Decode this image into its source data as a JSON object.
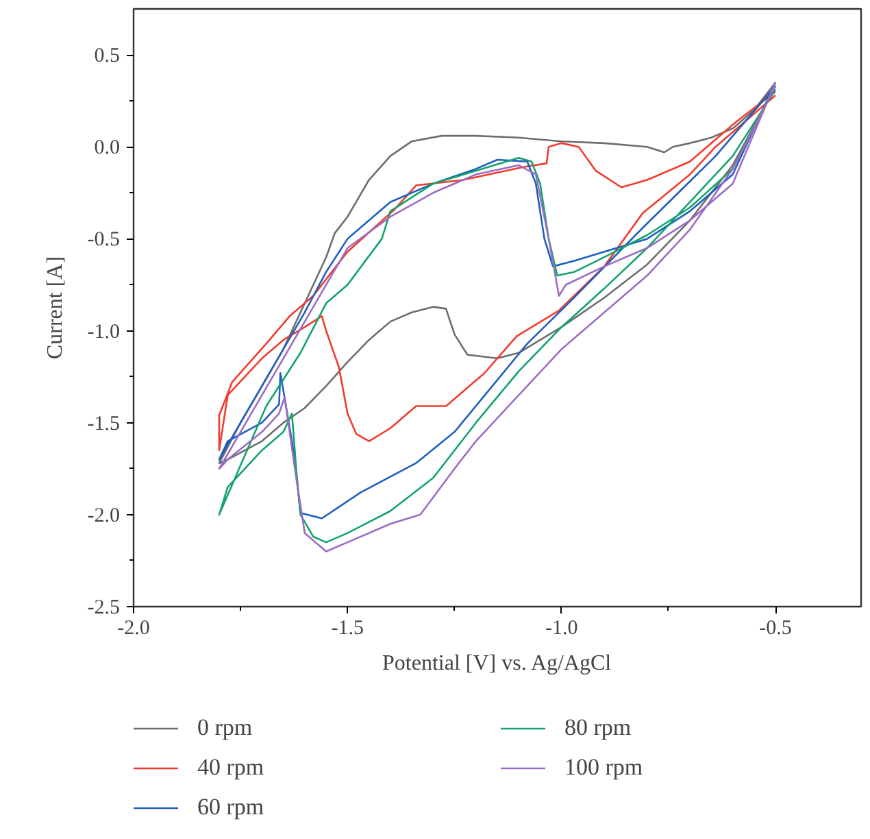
{
  "chart_data": {
    "type": "line",
    "xlabel": "Potential [V] vs. Ag/AgCl",
    "ylabel": "Current [A]",
    "xlim": [
      -2.0,
      -0.3
    ],
    "ylim": [
      -2.5,
      0.75
    ],
    "xticks": [
      {
        "value": -2.0,
        "label": "-2.0"
      },
      {
        "value": -1.75,
        "label": null
      },
      -1.5,
      {
        "value": -1.25,
        "label": null
      },
      {
        "value": -1.0,
        "label": "-1.0"
      },
      {
        "value": -0.75,
        "label": null
      },
      -0.5
    ],
    "yticks": [
      -2.5,
      {
        "value": -2.25,
        "label": null
      },
      {
        "value": -2.0,
        "label": "-2.0"
      },
      {
        "value": -1.75,
        "label": null
      },
      -1.5,
      {
        "value": -1.25,
        "label": null
      },
      {
        "value": -1.0,
        "label": "-1.0"
      },
      {
        "value": -0.75,
        "label": null
      },
      -0.5,
      {
        "value": -0.25,
        "label": null
      },
      {
        "value": 0.0,
        "label": "0.0"
      },
      {
        "value": 0.25,
        "label": null
      },
      0.5
    ],
    "grid": false,
    "legend": "bottom",
    "line_style": "solid",
    "marker": "none",
    "series": [
      {
        "name": "0 rpm",
        "color": "#6d6d6d",
        "x": [
          -0.5,
          -0.55,
          -0.6,
          -0.65,
          -0.7,
          -0.74,
          -0.76,
          -0.8,
          -0.9,
          -1.0,
          -1.1,
          -1.2,
          -1.28,
          -1.35,
          -1.4,
          -1.45,
          -1.5,
          -1.53,
          -1.55,
          -1.6,
          -1.65,
          -1.7,
          -1.75,
          -1.8,
          -1.78,
          -1.7,
          -1.65,
          -1.6,
          -1.55,
          -1.5,
          -1.45,
          -1.4,
          -1.35,
          -1.3,
          -1.27,
          -1.25,
          -1.22,
          -1.15,
          -1.1,
          -1.0,
          -0.9,
          -0.8,
          -0.7,
          -0.6,
          -0.5
        ],
        "values": [
          0.35,
          0.2,
          0.1,
          0.05,
          0.02,
          0.0,
          -0.03,
          0.0,
          0.02,
          0.03,
          0.05,
          0.06,
          0.06,
          0.03,
          -0.05,
          -0.18,
          -0.38,
          -0.47,
          -0.6,
          -0.85,
          -1.1,
          -1.3,
          -1.5,
          -1.72,
          -1.7,
          -1.6,
          -1.5,
          -1.42,
          -1.3,
          -1.17,
          -1.05,
          -0.95,
          -0.9,
          -0.87,
          -0.88,
          -1.02,
          -1.13,
          -1.15,
          -1.12,
          -0.98,
          -0.82,
          -0.64,
          -0.4,
          -0.1,
          0.33
        ]
      },
      {
        "name": "40 rpm",
        "color": "#f03c2e",
        "x": [
          -0.5,
          -0.59,
          -0.7,
          -0.8,
          -0.86,
          -0.92,
          -0.96,
          -1.0,
          -1.03,
          -1.035,
          -1.09,
          -1.23,
          -1.34,
          -1.39,
          -1.5,
          -1.58,
          -1.635,
          -1.69,
          -1.77,
          -1.8,
          -1.8,
          -1.78,
          -1.7,
          -1.65,
          -1.6,
          -1.56,
          -1.55,
          -1.52,
          -1.5,
          -1.48,
          -1.45,
          -1.4,
          -1.34,
          -1.27,
          -1.18,
          -1.105,
          -1.006,
          -0.9,
          -0.81,
          -0.7,
          -0.64,
          -0.5
        ],
        "values": [
          0.3,
          0.14,
          -0.08,
          -0.18,
          -0.22,
          -0.13,
          0.0,
          0.02,
          0.0,
          -0.09,
          -0.11,
          -0.18,
          -0.21,
          -0.34,
          -0.57,
          -0.81,
          -0.92,
          -1.07,
          -1.28,
          -1.46,
          -1.65,
          -1.35,
          -1.15,
          -1.05,
          -0.98,
          -0.92,
          -1.0,
          -1.2,
          -1.45,
          -1.56,
          -1.6,
          -1.53,
          -1.41,
          -1.41,
          -1.23,
          -1.03,
          -0.89,
          -0.65,
          -0.36,
          -0.15,
          0.0,
          0.28
        ]
      },
      {
        "name": "60 rpm",
        "color": "#1f5fbf",
        "x": [
          -0.5,
          -0.6,
          -0.7,
          -0.8,
          -0.9,
          -0.97,
          -1.02,
          -1.04,
          -1.06,
          -1.08,
          -1.15,
          -1.2,
          -1.3,
          -1.4,
          -1.5,
          -1.55,
          -1.6,
          -1.65,
          -1.7,
          -1.75,
          -1.8,
          -1.78,
          -1.7,
          -1.66,
          -1.657,
          -1.625,
          -1.61,
          -1.56,
          -1.47,
          -1.34,
          -1.25,
          -1.08,
          -0.975,
          -0.81,
          -0.64,
          -0.5
        ],
        "values": [
          0.35,
          -0.15,
          -0.35,
          -0.5,
          -0.57,
          -0.62,
          -0.65,
          -0.5,
          -0.2,
          -0.08,
          -0.07,
          -0.12,
          -0.2,
          -0.3,
          -0.5,
          -0.68,
          -0.9,
          -1.1,
          -1.3,
          -1.5,
          -1.7,
          -1.6,
          -1.5,
          -1.4,
          -1.23,
          -1.67,
          -1.99,
          -2.02,
          -1.88,
          -1.72,
          -1.55,
          -1.07,
          -0.83,
          -0.44,
          -0.05,
          0.33
        ]
      },
      {
        "name": "80 rpm",
        "color": "#14a36a",
        "x": [
          -0.5,
          -0.6,
          -0.7,
          -0.8,
          -0.9,
          -0.97,
          -1.01,
          -1.03,
          -1.05,
          -1.07,
          -1.1,
          -1.3,
          -1.4,
          -1.42,
          -1.5,
          -1.55,
          -1.61,
          -1.69,
          -1.8,
          -1.78,
          -1.7,
          -1.65,
          -1.63,
          -1.62,
          -1.61,
          -1.58,
          -1.55,
          -1.5,
          -1.4,
          -1.3,
          -1.25,
          -1.2,
          -1.1,
          -1.0,
          -0.9,
          -0.8,
          -0.7,
          -0.6,
          -0.5
        ],
        "values": [
          0.33,
          -0.12,
          -0.33,
          -0.48,
          -0.6,
          -0.68,
          -0.7,
          -0.5,
          -0.2,
          -0.08,
          -0.06,
          -0.2,
          -0.35,
          -0.5,
          -0.75,
          -0.85,
          -1.12,
          -1.41,
          -2.0,
          -1.85,
          -1.65,
          -1.55,
          -1.45,
          -1.75,
          -2.0,
          -2.12,
          -2.15,
          -2.1,
          -1.98,
          -1.8,
          -1.65,
          -1.5,
          -1.22,
          -0.98,
          -0.77,
          -0.55,
          -0.3,
          -0.05,
          0.31
        ]
      },
      {
        "name": "100 rpm",
        "color": "#9b6cc4",
        "x": [
          -0.5,
          -0.6,
          -0.7,
          -0.8,
          -0.9,
          -0.99,
          -1.006,
          -1.03,
          -1.06,
          -1.1,
          -1.2,
          -1.3,
          -1.4,
          -1.5,
          -1.55,
          -1.6,
          -1.65,
          -1.7,
          -1.75,
          -1.8,
          -1.78,
          -1.7,
          -1.66,
          -1.647,
          -1.62,
          -1.6,
          -1.55,
          -1.5,
          -1.4,
          -1.33,
          -1.25,
          -1.2,
          -1.0,
          -0.8,
          -0.7,
          -0.6,
          -0.5
        ],
        "values": [
          0.35,
          -0.2,
          -0.4,
          -0.55,
          -0.65,
          -0.75,
          -0.81,
          -0.5,
          -0.15,
          -0.1,
          -0.15,
          -0.25,
          -0.38,
          -0.55,
          -0.75,
          -0.95,
          -1.15,
          -1.35,
          -1.55,
          -1.75,
          -1.7,
          -1.55,
          -1.45,
          -1.36,
          -1.8,
          -2.1,
          -2.2,
          -2.15,
          -2.05,
          -2.0,
          -1.75,
          -1.6,
          -1.1,
          -0.7,
          -0.45,
          -0.12,
          0.33
        ]
      }
    ]
  }
}
